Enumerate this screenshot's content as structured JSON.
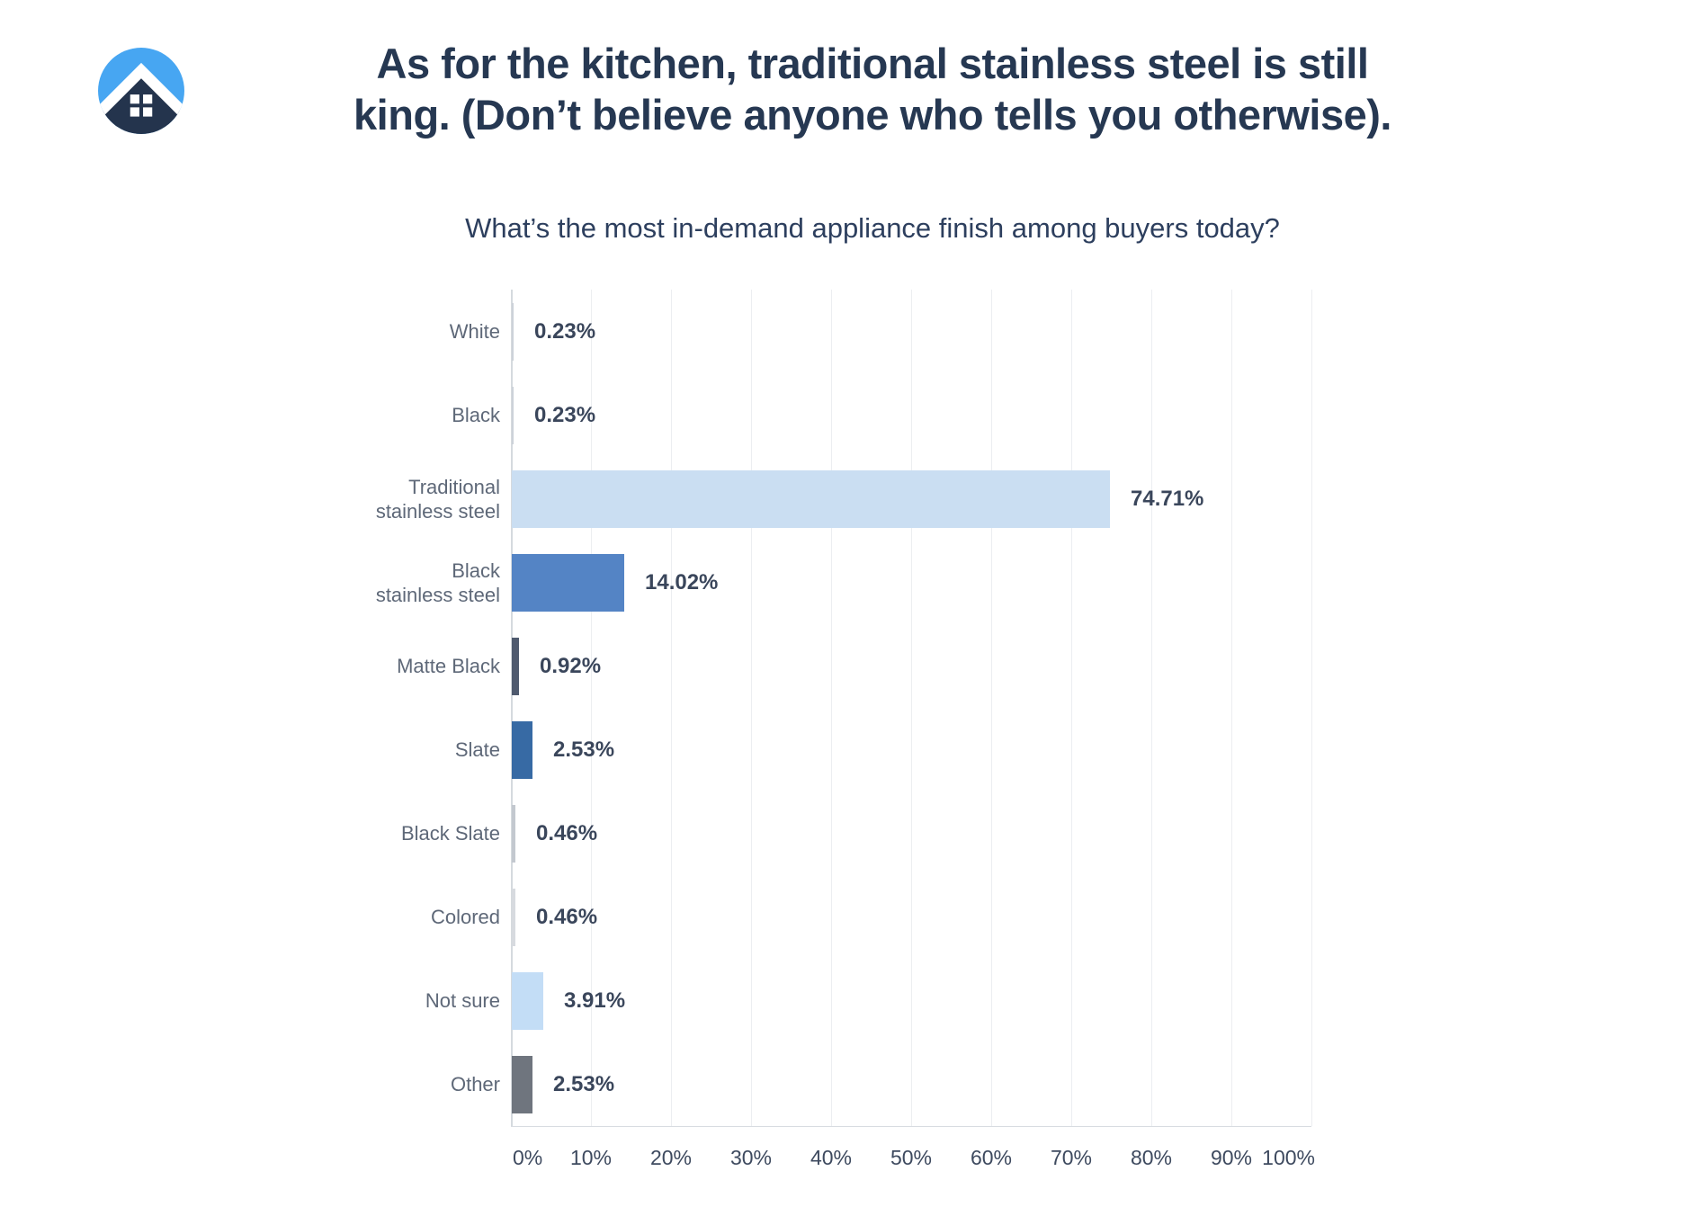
{
  "header": {
    "title_line1": "As for the kitchen, traditional stainless steel is still",
    "title_line2": "king. (Don’t believe anyone who tells you otherwise).",
    "subtitle": "What’s the most in-demand appliance finish among buyers today?"
  },
  "logo": {
    "name": "homelight-logo",
    "circle_color": "#47a6f2",
    "house_color": "#24344d",
    "roof_color": "#ffffff"
  },
  "chart_data": {
    "type": "bar",
    "orientation": "horizontal",
    "title": "What’s the most in-demand appliance finish among buyers today?",
    "categories": [
      [
        "White"
      ],
      [
        "Black"
      ],
      [
        "Traditional",
        "stainless steel"
      ],
      [
        "Black",
        "stainless steel"
      ],
      [
        "Matte Black"
      ],
      [
        "Slate"
      ],
      [
        "Black Slate"
      ],
      [
        "Colored"
      ],
      [
        "Not sure"
      ],
      [
        "Other"
      ]
    ],
    "values": [
      0.23,
      0.23,
      74.71,
      14.02,
      0.92,
      2.53,
      0.46,
      0.46,
      3.91,
      2.53
    ],
    "value_labels": [
      "0.23%",
      "0.23%",
      "74.71%",
      "14.02%",
      "0.92%",
      "2.53%",
      "0.46%",
      "0.46%",
      "3.91%",
      "2.53%"
    ],
    "bar_colors": [
      "#cdd2d9",
      "#cdd2d9",
      "#cadef2",
      "#5484c5",
      "#4f5a6e",
      "#376aa4",
      "#c3c8cf",
      "#d7dadf",
      "#c3ddf6",
      "#6f757e"
    ],
    "x_ticks": [
      "0%",
      "10%",
      "20%",
      "30%",
      "40%",
      "50%",
      "60%",
      "70%",
      "80%",
      "90%",
      "100%"
    ],
    "xlim": [
      0,
      100
    ],
    "grid": "vertical",
    "legend": "none"
  }
}
